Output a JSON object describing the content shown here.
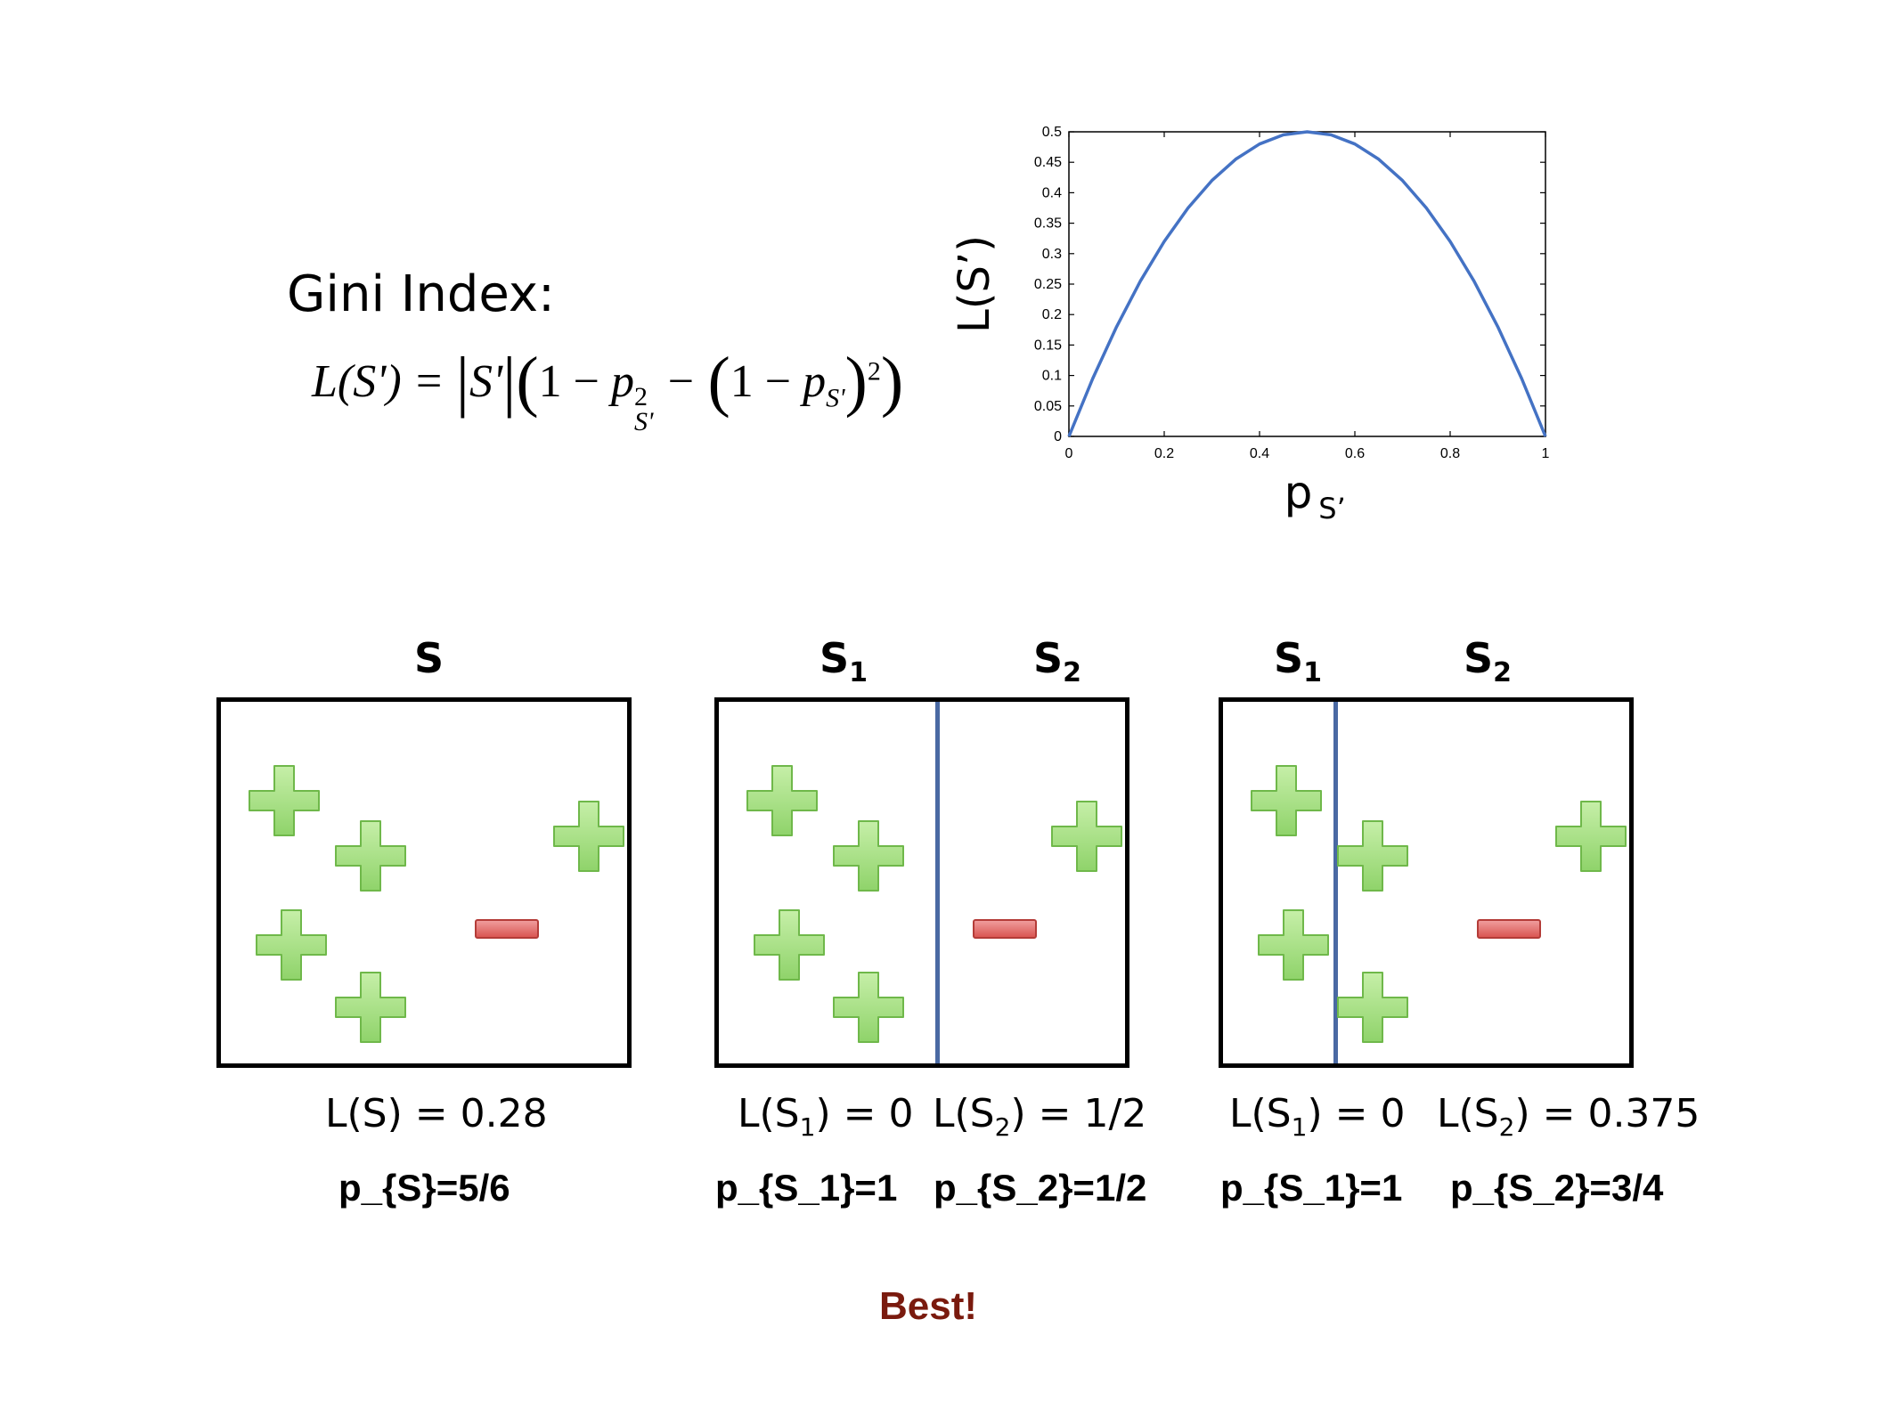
{
  "title": "Gini Index:",
  "formula": {
    "lhs": "L(S') =",
    "abs": "S'",
    "one": "1 −",
    "p1": "p",
    "p1_sup": "2",
    "p1_sub": "S'",
    "minus": "−",
    "one_b": "1 −",
    "p2": "p",
    "p2_sub": "S'",
    "sq": "2"
  },
  "chart_data": {
    "type": "line",
    "ylabel": "L(S’)",
    "xlabel": "p",
    "xlabel_sub": "S’",
    "xlim": [
      0,
      1
    ],
    "ylim": [
      0,
      0.5
    ],
    "xticks": [
      0,
      0.2,
      0.4,
      0.6,
      0.8,
      1
    ],
    "yticks": [
      0,
      0.05,
      0.1,
      0.15,
      0.2,
      0.25,
      0.3,
      0.35,
      0.4,
      0.45,
      0.5
    ],
    "xtick_labels": [
      "0",
      "0.2",
      "0.4",
      "0.6",
      "0.8",
      "1"
    ],
    "ytick_labels": [
      "0",
      "0.05",
      "0.1",
      "0.15",
      "0.2",
      "0.25",
      "0.3",
      "0.35",
      "0.4",
      "0.45",
      "0.5"
    ],
    "series": [
      {
        "x": [
          0,
          0.05,
          0.1,
          0.15,
          0.2,
          0.25,
          0.3,
          0.35,
          0.4,
          0.45,
          0.5,
          0.55,
          0.6,
          0.65,
          0.7,
          0.75,
          0.8,
          0.85,
          0.9,
          0.95,
          1
        ],
        "y": [
          0,
          0.095,
          0.18,
          0.255,
          0.32,
          0.375,
          0.42,
          0.455,
          0.48,
          0.495,
          0.5,
          0.495,
          0.48,
          0.455,
          0.42,
          0.375,
          0.32,
          0.255,
          0.18,
          0.095,
          0
        ],
        "color": "#4472c4"
      }
    ],
    "grid": false
  },
  "splits": [
    {
      "headers": [
        {
          "main": "S",
          "sub": ""
        }
      ],
      "losses": [
        {
          "text": "L(S) = 0.28"
        }
      ],
      "probs": [
        "p_{S}=5/6"
      ],
      "plus_count": 5,
      "minus_count": 1
    },
    {
      "headers": [
        {
          "main": "S",
          "sub": "1"
        },
        {
          "main": "S",
          "sub": "2"
        }
      ],
      "losses": [
        {
          "pre": "L(S",
          "sub": "1",
          "post": ") = 0"
        },
        {
          "pre": "L(S",
          "sub": "2",
          "post": ") = 1/2"
        }
      ],
      "probs": [
        "p_{S_1}=1",
        "p_{S_2}=1/2"
      ],
      "plus_count": 5,
      "minus_count": 1
    },
    {
      "headers": [
        {
          "main": "S",
          "sub": "1"
        },
        {
          "main": "S",
          "sub": "2"
        }
      ],
      "losses": [
        {
          "pre": "L(S",
          "sub": "1",
          "post": ") = 0"
        },
        {
          "pre": "L(S",
          "sub": "2",
          "post": ") = 0.375"
        }
      ],
      "probs": [
        "p_{S_1}=1",
        "p_{S_2}=3/4"
      ],
      "plus_count": 5,
      "minus_count": 1
    }
  ],
  "best_label": "Best!",
  "colors": {
    "plus": "#8fd36a",
    "minus": "#d9534f",
    "divider": "#4a69a3",
    "curve": "#4472c4",
    "best": "#7a1a0e"
  },
  "icons": {
    "plus": "plus-icon",
    "minus": "minus-icon"
  }
}
